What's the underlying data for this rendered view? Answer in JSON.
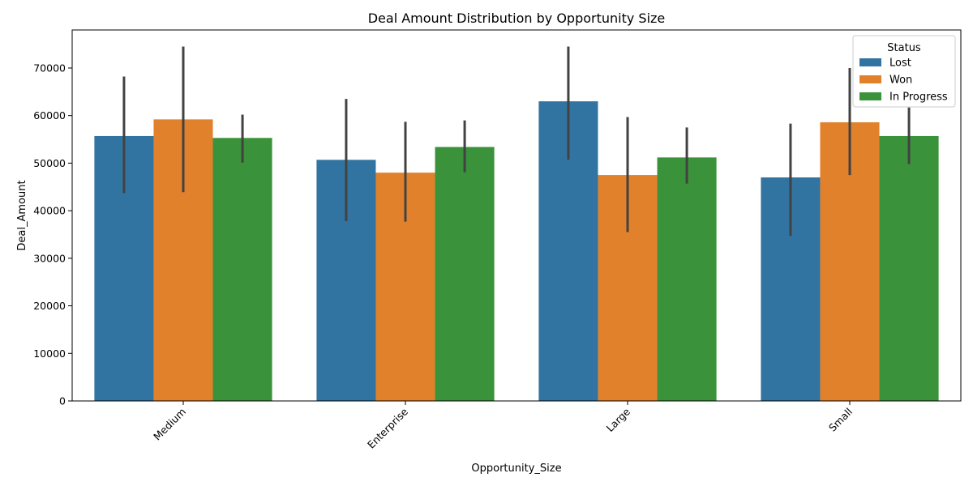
{
  "chart_data": {
    "type": "bar",
    "title": "Deal Amount Distribution by Opportunity Size",
    "xlabel": "Opportunity_Size",
    "ylabel": "Deal_Amount",
    "categories": [
      "Medium",
      "Enterprise",
      "Large",
      "Small"
    ],
    "ylim": [
      0,
      78000
    ],
    "yticks": [
      0,
      10000,
      20000,
      30000,
      40000,
      50000,
      60000,
      70000
    ],
    "ytick_labels": [
      "0",
      "10000",
      "20000",
      "30000",
      "40000",
      "50000",
      "60000",
      "70000"
    ],
    "series": [
      {
        "name": "Lost",
        "color": "#3274a1",
        "values": [
          55700,
          50700,
          63000,
          47000
        ],
        "err_low": [
          43700,
          37800,
          50700,
          34700
        ],
        "err_high": [
          68200,
          63500,
          74500,
          58300
        ]
      },
      {
        "name": "Won",
        "color": "#e1812c",
        "values": [
          59200,
          48000,
          47500,
          58600
        ],
        "err_low": [
          43900,
          37700,
          35500,
          47500
        ],
        "err_high": [
          74500,
          58700,
          59700,
          70000
        ]
      },
      {
        "name": "In Progress",
        "color": "#3a923a",
        "values": [
          55300,
          53400,
          51200,
          55700
        ],
        "err_low": [
          50100,
          48100,
          45700,
          49800
        ],
        "err_high": [
          60200,
          59000,
          57500,
          61700
        ]
      }
    ],
    "legend": {
      "title": "Status",
      "position": "top-right"
    },
    "grid": false,
    "error_bar_color": "#424242"
  }
}
